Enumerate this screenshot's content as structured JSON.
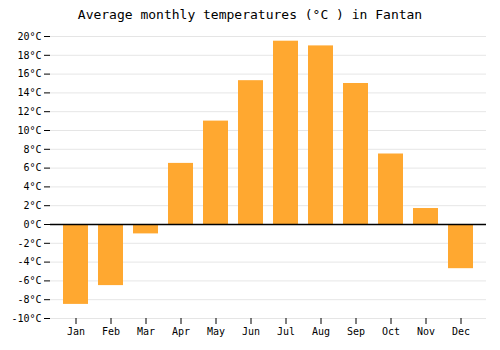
{
  "chart_data": {
    "type": "bar",
    "title": "Average monthly temperatures (°C ) in Fantan",
    "categories": [
      "Jan",
      "Feb",
      "Mar",
      "Apr",
      "May",
      "Jun",
      "Jul",
      "Aug",
      "Sep",
      "Oct",
      "Nov",
      "Dec"
    ],
    "values": [
      -8.5,
      -6.5,
      -1.0,
      6.5,
      11.0,
      15.3,
      19.5,
      19.0,
      15.0,
      7.5,
      1.7,
      -4.7
    ],
    "color": "#FFA830",
    "ylim": [
      -10,
      20
    ],
    "yticks": [
      {
        "value": -10,
        "label": "-10°C"
      },
      {
        "value": -8,
        "label": "-8°C"
      },
      {
        "value": -6,
        "label": "-6°C"
      },
      {
        "value": -4,
        "label": "-4°C"
      },
      {
        "value": -2,
        "label": "-2°C"
      },
      {
        "value": 0,
        "label": "0°C"
      },
      {
        "value": 2,
        "label": "2°C"
      },
      {
        "value": 4,
        "label": "4°C"
      },
      {
        "value": 6,
        "label": "6°C"
      },
      {
        "value": 8,
        "label": "8°C"
      },
      {
        "value": 10,
        "label": "10°C"
      },
      {
        "value": 12,
        "label": "12°C"
      },
      {
        "value": 14,
        "label": "14°C"
      },
      {
        "value": 16,
        "label": "16°C"
      },
      {
        "value": 18,
        "label": "18°C"
      },
      {
        "value": 20,
        "label": "20°C"
      }
    ],
    "grid": true
  }
}
